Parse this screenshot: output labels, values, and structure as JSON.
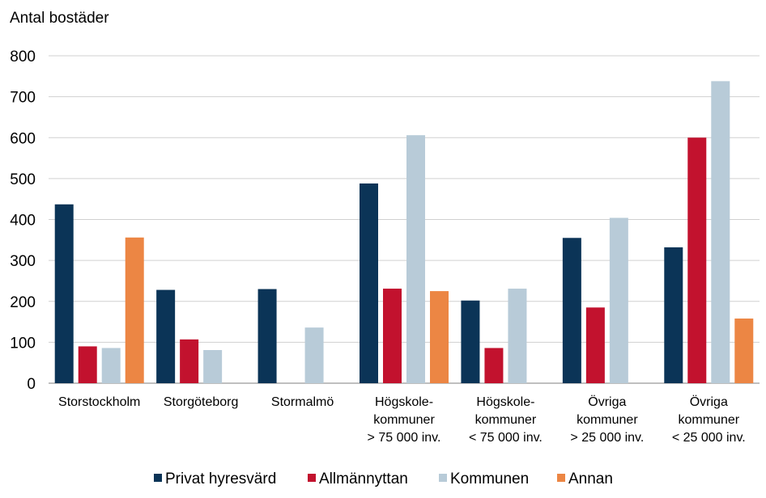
{
  "chart_data": {
    "type": "bar",
    "title": "",
    "ylabel": "Antal bostäder",
    "xlabel": "",
    "ylim": [
      0,
      800
    ],
    "yticks": [
      0,
      100,
      200,
      300,
      400,
      500,
      600,
      700,
      800
    ],
    "grid": true,
    "legend_position": "bottom",
    "categories": [
      [
        "Storstockholm"
      ],
      [
        "Storgöteborg"
      ],
      [
        "Stormalmö"
      ],
      [
        "Högskole-",
        "kommuner",
        "> 75 000 inv."
      ],
      [
        "Högskole-",
        "kommuner",
        "< 75 000 inv."
      ],
      [
        "Övriga",
        "kommuner",
        "> 25 000 inv."
      ],
      [
        "Övriga",
        "kommuner",
        "< 25 000 inv."
      ]
    ],
    "series": [
      {
        "name": "Privat hyresvärd",
        "color": "#0b3457",
        "values": [
          437,
          228,
          230,
          488,
          202,
          355,
          332
        ]
      },
      {
        "name": "Allmännyttan",
        "color": "#c2122e",
        "values": [
          90,
          107,
          null,
          231,
          86,
          185,
          600
        ]
      },
      {
        "name": "Kommunen",
        "color": "#b8cbd8",
        "values": [
          86,
          81,
          136,
          606,
          231,
          404,
          738
        ]
      },
      {
        "name": "Annan",
        "color": "#ec8644",
        "values": [
          356,
          null,
          null,
          225,
          null,
          null,
          158
        ]
      }
    ]
  }
}
